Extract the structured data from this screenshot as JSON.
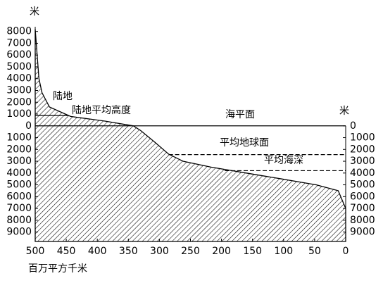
{
  "chart_data": {
    "type": "area",
    "y_unit_left": "米",
    "y_unit_right": "米",
    "x_label": "百万平方千米",
    "x": [
      500,
      494,
      489,
      477,
      443,
      387,
      342,
      330,
      307,
      285,
      262,
      217,
      160,
      103,
      47,
      12,
      0,
      0
    ],
    "series": [
      {
        "name": "陆地",
        "color": "#000000",
        "values": [
          8200,
          4000,
          2800,
          1600,
          800,
          400,
          0,
          -400,
          -1400,
          -2400,
          -3000,
          -3500,
          -4000,
          -4500,
          -5000,
          -5500,
          -7000,
          -9800
        ]
      }
    ],
    "reference_lines": [
      {
        "label": "陆地平均高度",
        "value": 875,
        "x_range": [
          500,
          446
        ],
        "dashed": false
      },
      {
        "label": "海平面",
        "value": 0,
        "x_range": [
          500,
          0
        ],
        "dashed": false
      },
      {
        "label": "平均地球面",
        "value": -2440,
        "x_range": [
          285,
          0
        ],
        "dashed": true
      },
      {
        "label": "平均海深",
        "value": -3800,
        "x_range": [
          195,
          0
        ],
        "dashed": true
      }
    ],
    "xlim": [
      500,
      0
    ],
    "xticks": [
      500,
      450,
      400,
      350,
      300,
      250,
      200,
      150,
      100,
      50,
      0
    ],
    "ylim": [
      -9800,
      8400
    ],
    "yticks": [
      8000,
      7000,
      6000,
      5000,
      4000,
      3000,
      2000,
      1000,
      0,
      {
        "value": -1000,
        "label": "1000"
      },
      {
        "value": -2000,
        "label": "2000"
      },
      {
        "value": -3000,
        "label": "3000"
      },
      {
        "value": -4000,
        "label": "4000"
      },
      {
        "value": -5000,
        "label": "5000"
      },
      {
        "value": -6000,
        "label": "6000"
      },
      {
        "value": -7000,
        "label": "7000"
      },
      {
        "value": -8000,
        "label": "8000"
      },
      {
        "value": -9000,
        "label": "9000"
      }
    ],
    "y2ticks": [
      0,
      {
        "value": -1000,
        "label": "1000"
      },
      {
        "value": -2000,
        "label": "2000"
      },
      {
        "value": -3000,
        "label": "3000"
      },
      {
        "value": -4000,
        "label": "4000"
      },
      {
        "value": -5000,
        "label": "5000"
      },
      {
        "value": -6000,
        "label": "6000"
      },
      {
        "value": -7000,
        "label": "7000"
      },
      {
        "value": -8000,
        "label": "8000"
      },
      {
        "value": -9000,
        "label": "9000"
      }
    ],
    "grid": false
  }
}
